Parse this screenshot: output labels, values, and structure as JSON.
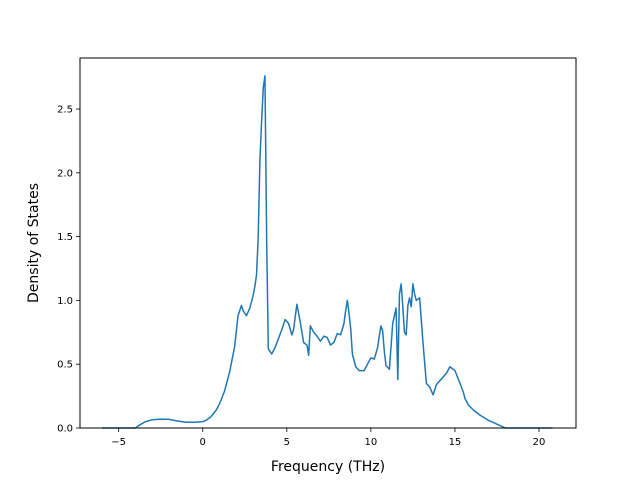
{
  "chart_data": {
    "type": "line",
    "title": "",
    "xlabel": "Frequency (THz)",
    "ylabel": "Density of States",
    "xlim": [
      -7.3,
      22.2
    ],
    "ylim": [
      0.0,
      2.9
    ],
    "xticks": [
      -5,
      0,
      5,
      10,
      15,
      20
    ],
    "yticks": [
      0.0,
      0.5,
      1.0,
      1.5,
      2.0,
      2.5
    ],
    "xtick_labels": [
      "−5",
      "0",
      "5",
      "10",
      "15",
      "20"
    ],
    "ytick_labels": [
      "0.0",
      "0.5",
      "1.0",
      "1.5",
      "2.0",
      "2.5"
    ],
    "grid": false,
    "line_color": "#1f77b4",
    "series": [
      {
        "x": [
          -6.0,
          -4.0,
          -3.8,
          -3.4,
          -3.0,
          -2.5,
          -2.0,
          -1.5,
          -1.0,
          -0.5,
          0.0,
          0.2,
          0.5,
          0.8,
          1.0,
          1.3,
          1.6,
          1.9,
          2.1,
          2.3,
          2.4,
          2.6,
          2.8,
          3.0,
          3.1,
          3.2,
          3.3,
          3.4,
          3.5,
          3.6,
          3.7,
          3.8,
          3.9,
          4.1,
          4.3,
          4.5,
          4.7,
          4.9,
          5.1,
          5.3,
          5.4,
          5.6,
          5.8,
          6.0,
          6.2,
          6.3,
          6.4,
          6.6,
          6.8,
          7.0,
          7.2,
          7.4,
          7.6,
          7.8,
          8.0,
          8.2,
          8.4,
          8.5,
          8.6,
          8.7,
          8.8,
          8.9,
          9.1,
          9.3,
          9.6,
          9.8,
          10.0,
          10.2,
          10.4,
          10.5,
          10.6,
          10.7,
          10.8,
          10.9,
          11.1,
          11.3,
          11.5,
          11.6,
          11.7,
          11.8,
          11.9,
          12.0,
          12.1,
          12.2,
          12.3,
          12.4,
          12.5,
          12.6,
          12.7,
          12.8,
          12.9,
          13.1,
          13.3,
          13.5,
          13.7,
          13.9,
          14.1,
          14.3,
          14.5,
          14.7,
          15.0,
          15.3,
          15.5,
          15.6,
          15.8,
          16.1,
          16.5,
          17.0,
          17.5,
          18.0,
          18.4,
          18.7,
          19.0,
          20.0,
          20.8
        ],
        "y": [
          0.0,
          0.0,
          0.02,
          0.05,
          0.065,
          0.07,
          0.068,
          0.055,
          0.045,
          0.045,
          0.05,
          0.06,
          0.09,
          0.14,
          0.19,
          0.29,
          0.44,
          0.64,
          0.88,
          0.96,
          0.92,
          0.88,
          0.94,
          1.04,
          1.11,
          1.2,
          1.5,
          2.1,
          2.4,
          2.67,
          2.76,
          1.5,
          0.62,
          0.58,
          0.63,
          0.7,
          0.77,
          0.85,
          0.82,
          0.73,
          0.77,
          0.97,
          0.83,
          0.67,
          0.65,
          0.57,
          0.8,
          0.75,
          0.72,
          0.68,
          0.72,
          0.71,
          0.65,
          0.67,
          0.74,
          0.73,
          0.82,
          0.92,
          1.0,
          0.9,
          0.78,
          0.58,
          0.48,
          0.45,
          0.45,
          0.5,
          0.55,
          0.54,
          0.63,
          0.72,
          0.8,
          0.76,
          0.6,
          0.49,
          0.46,
          0.82,
          0.94,
          0.38,
          1.05,
          1.13,
          0.95,
          0.75,
          0.73,
          0.96,
          1.02,
          0.95,
          1.13,
          1.05,
          1.0,
          1.01,
          1.02,
          0.67,
          0.35,
          0.32,
          0.26,
          0.34,
          0.37,
          0.4,
          0.43,
          0.48,
          0.45,
          0.35,
          0.28,
          0.23,
          0.18,
          0.14,
          0.1,
          0.06,
          0.03,
          0.0,
          0.0,
          0.0,
          0.0,
          0.0,
          0.0
        ]
      }
    ]
  }
}
